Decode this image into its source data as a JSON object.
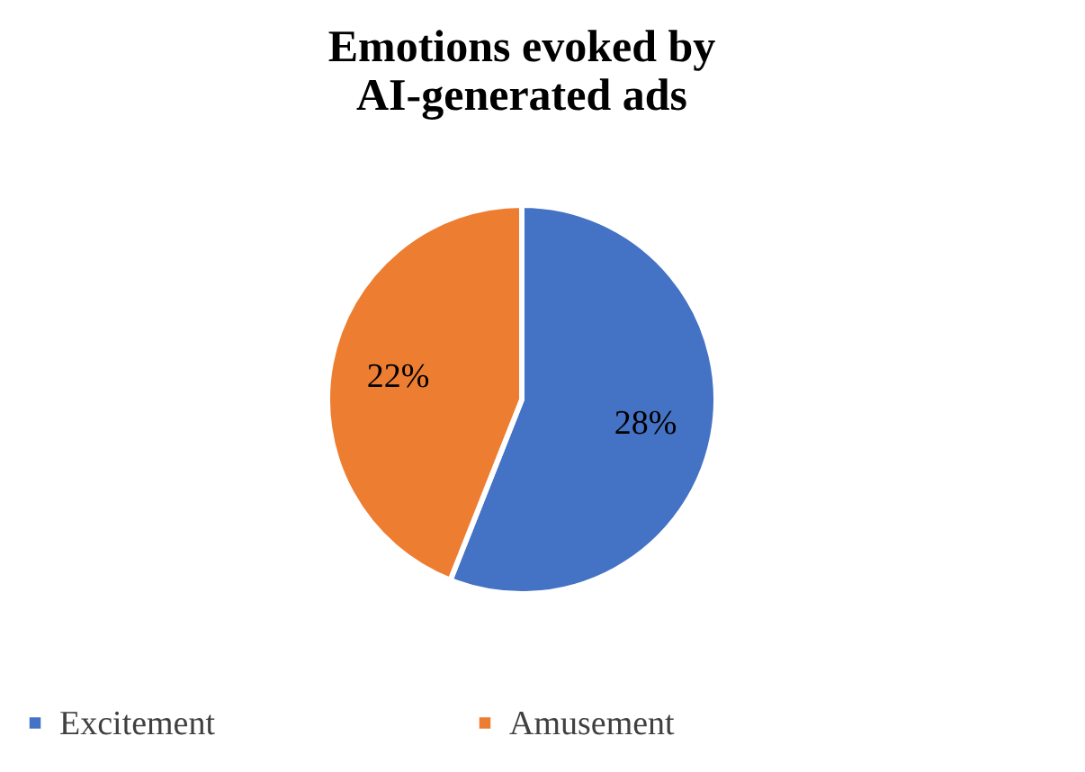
{
  "chart_data": {
    "type": "pie",
    "title": "Emotions evoked by AI-generated ads",
    "categories": [
      "Excitement",
      "Amusement"
    ],
    "values": [
      28,
      22
    ],
    "colors": [
      "#4472c4",
      "#ed7d31"
    ],
    "value_labels": [
      "28%",
      "22%"
    ],
    "legend": "bottom"
  }
}
